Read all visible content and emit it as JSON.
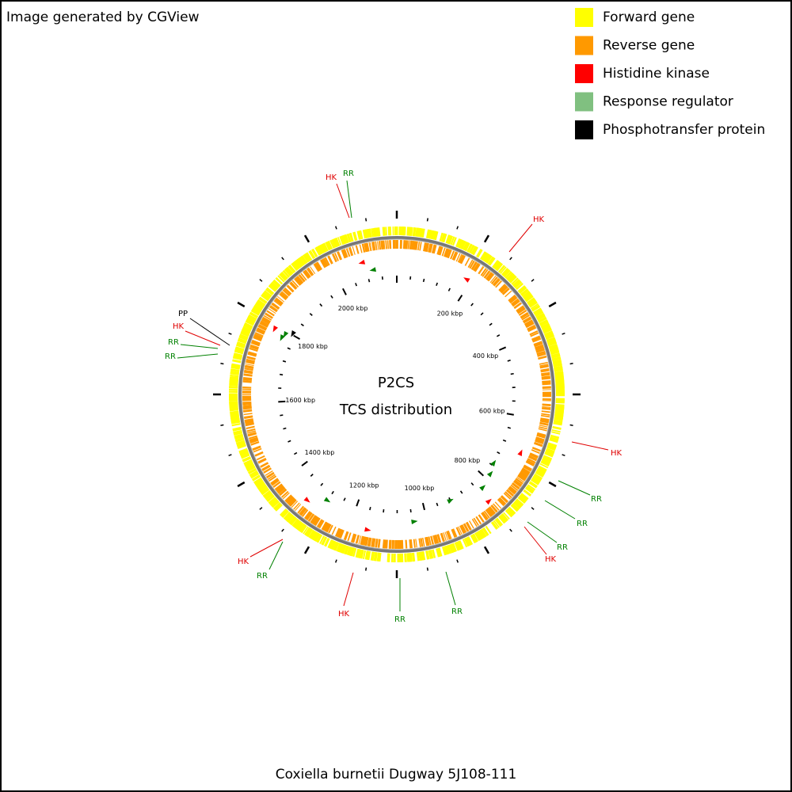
{
  "header": {
    "credit": "Image generated by CGView"
  },
  "legend": [
    {
      "label": "Forward gene",
      "color": "#ffff00"
    },
    {
      "label": "Reverse gene",
      "color": "#ff9900"
    },
    {
      "label": "Histidine kinase",
      "color": "#ff0000"
    },
    {
      "label": "Response regulator",
      "color": "#80c080"
    },
    {
      "label": "Phosphotransfer protein",
      "color": "#000000"
    }
  ],
  "center": {
    "title": "P2CS",
    "subtitle": "TCS distribution"
  },
  "scale_labels": [
    "200 kbp",
    "400 kbp",
    "600 kbp",
    "800 kbp",
    "1000 kbp",
    "1200 kbp",
    "1400 kbp",
    "1600 kbp",
    "1800 kbp",
    "2000 kbp"
  ],
  "callouts": [
    {
      "label": "HK"
    },
    {
      "label": "RR"
    },
    {
      "label": "HK"
    },
    {
      "label": "PP"
    },
    {
      "label": "HK"
    },
    {
      "label": "RR"
    },
    {
      "label": "RR"
    },
    {
      "label": "HK"
    },
    {
      "label": "RR"
    },
    {
      "label": "RR"
    },
    {
      "label": "HK"
    },
    {
      "label": "RR"
    },
    {
      "label": "HK"
    },
    {
      "label": "RR"
    },
    {
      "label": "HK"
    },
    {
      "label": "RR"
    },
    {
      "label": "RR"
    }
  ],
  "footer": {
    "organism": "Coxiella burnetii Dugway 5J108-111"
  }
}
